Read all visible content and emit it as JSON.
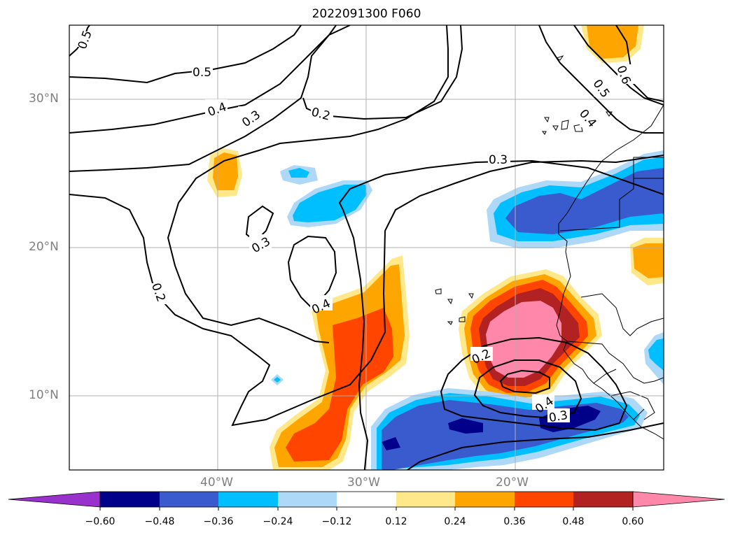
{
  "title": "2022091300 F060",
  "map": {
    "lat_labels": [
      {
        "text": "30°N",
        "lat": 30
      },
      {
        "text": "20°N",
        "lat": 20
      },
      {
        "text": "10°N",
        "lat": 10
      }
    ],
    "lon_labels": [
      {
        "text": "40°W",
        "lon": -40
      },
      {
        "text": "30°W",
        "lon": -30
      },
      {
        "text": "20°W",
        "lon": -20
      }
    ],
    "extent": {
      "lon_min": -50,
      "lon_max": -10,
      "lat_min": 5,
      "lat_max": 35
    },
    "grid": true
  },
  "contours": {
    "label_values": [
      "0.5",
      "0.5",
      "0.4",
      "0.3",
      "0.2",
      "0.3",
      "0.3",
      "0.2",
      "0.4",
      "0.6",
      "0.5",
      "0.4",
      "0.2",
      "0.4",
      "0.3"
    ]
  },
  "colorbar": {
    "ticks": [
      "−0.60",
      "−0.48",
      "−0.36",
      "−0.24",
      "−0.12",
      "0.12",
      "0.24",
      "0.36",
      "0.48",
      "0.60"
    ],
    "colors": [
      "#9932cc",
      "#00008b",
      "#3a5bcd",
      "#00bfff",
      "#add8f7",
      "#ffffff",
      "#ffe88a",
      "#ffa500",
      "#ff4500",
      "#b22222",
      "#ff88aa"
    ],
    "extend": "both"
  }
}
